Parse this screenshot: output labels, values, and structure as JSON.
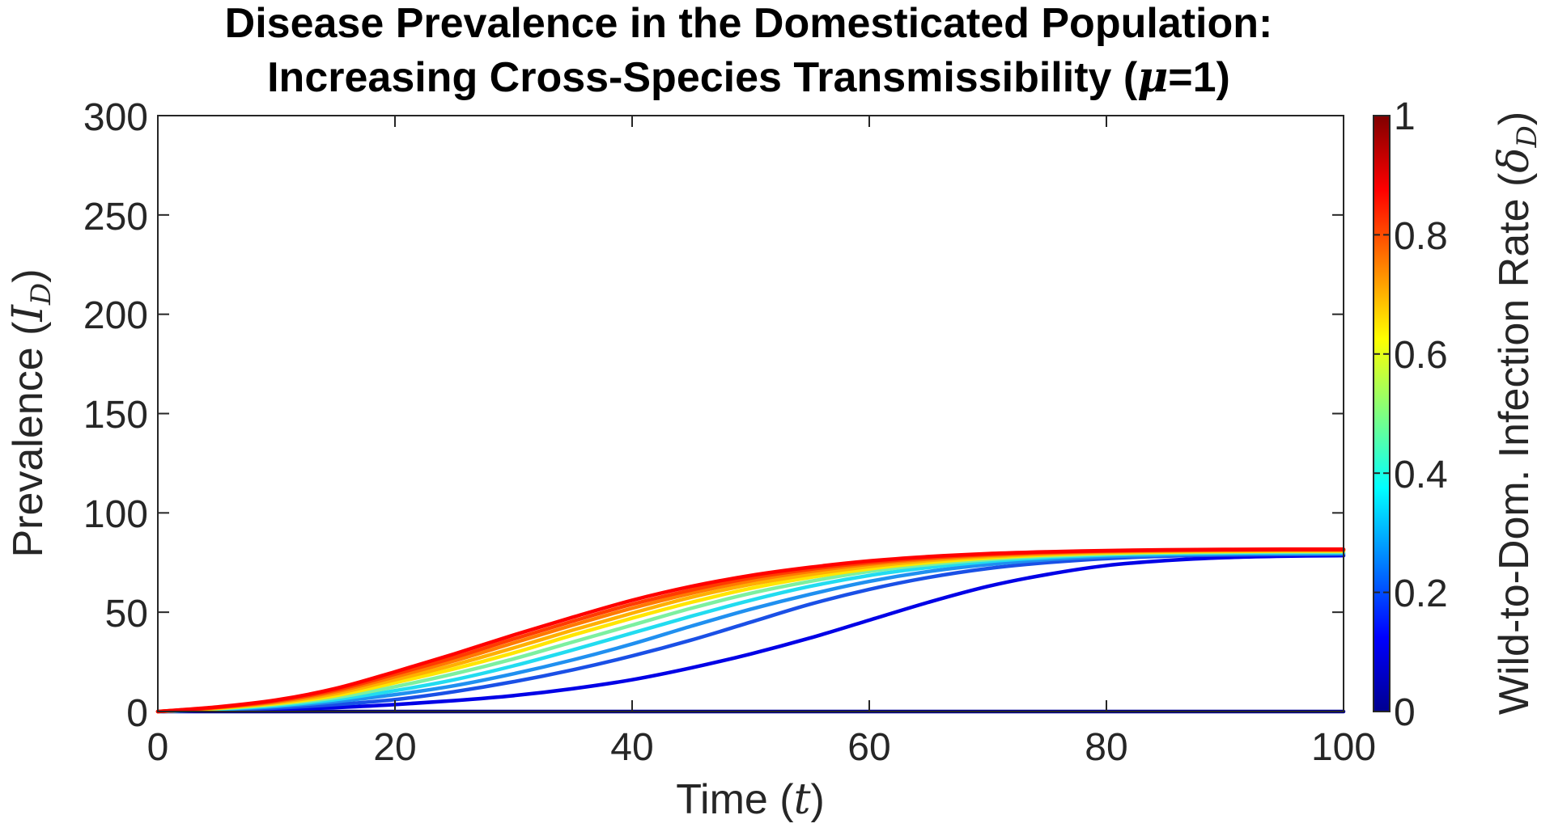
{
  "chart_data": {
    "type": "line",
    "title_line1": "Disease Prevalence in the Domesticated Population:",
    "title_line2_prefix": "Increasing Cross-Species Transmissibility (",
    "title_mu_symbol": "μ",
    "title_line2_suffix": "=1)",
    "xlabel_prefix": "Time (",
    "xlabel_var": "t",
    "xlabel_suffix": ")",
    "ylabel_prefix": "Prevalence (",
    "ylabel_var": "I",
    "ylabel_sub": "D",
    "ylabel_suffix": ")",
    "xlim": [
      0,
      100
    ],
    "ylim": [
      0,
      300
    ],
    "xticks": [
      "0",
      "20",
      "40",
      "60",
      "80",
      "100"
    ],
    "yticks": [
      "0",
      "50",
      "100",
      "150",
      "200",
      "250",
      "300"
    ],
    "colorbar": {
      "colormap": "jet",
      "range": [
        0,
        1
      ],
      "ticks": [
        "0",
        "0.2",
        "0.4",
        "0.6",
        "0.8",
        "1"
      ],
      "label_prefix": "Wild-to-Dom. Infection Rate (",
      "label_var": "δ",
      "label_sub": "D",
      "label_suffix": ")"
    },
    "x": [
      0,
      5,
      10,
      15,
      20,
      25,
      30,
      35,
      40,
      45,
      50,
      55,
      60,
      65,
      70,
      75,
      80,
      85,
      90,
      95,
      100
    ],
    "series": [
      {
        "name": "δD=0.0",
        "delta": 0.0,
        "color": "#00008f",
        "values": [
          0,
          0,
          0,
          0,
          0,
          0,
          0,
          0,
          0,
          0,
          0,
          0,
          0,
          0,
          0,
          0,
          0,
          0,
          0,
          0,
          0
        ]
      },
      {
        "name": "δD=0.1",
        "delta": 0.1,
        "color": "#0000e6",
        "values": [
          0,
          0.6,
          1.2,
          2,
          3.5,
          5.5,
          8,
          11.5,
          16,
          22,
          29,
          37,
          46,
          55,
          63,
          69,
          73.5,
          76,
          77.5,
          78.2,
          78.5
        ]
      },
      {
        "name": "δD=0.2",
        "delta": 0.2,
        "color": "#1a50e6",
        "values": [
          0,
          0.8,
          1.8,
          3.5,
          6,
          10,
          15,
          21,
          28,
          36,
          45,
          54,
          61.5,
          67.5,
          72,
          75,
          77,
          78.2,
          78.8,
          79,
          79.2
        ]
      },
      {
        "name": "δD=0.3",
        "delta": 0.3,
        "color": "#2090f0",
        "values": [
          0,
          1,
          2.5,
          5,
          8.5,
          13,
          19,
          26,
          34,
          43,
          51.5,
          59,
          65.5,
          70.5,
          74,
          76.5,
          78,
          78.8,
          79.3,
          79.5,
          79.6
        ]
      },
      {
        "name": "δD=0.4",
        "delta": 0.4,
        "color": "#22dcf0",
        "values": [
          0,
          1.2,
          3,
          6,
          10.5,
          16,
          23,
          31,
          39.5,
          48,
          56,
          63,
          68.5,
          72.5,
          75.5,
          77.5,
          78.8,
          79.5,
          79.8,
          80,
          80
        ]
      },
      {
        "name": "δD=0.5",
        "delta": 0.5,
        "color": "#7cf0a0",
        "values": [
          0,
          1.4,
          3.5,
          7,
          12.5,
          19,
          26.5,
          35,
          43.5,
          52,
          59.5,
          65.5,
          70.5,
          74,
          76.5,
          78.2,
          79.3,
          79.9,
          80.2,
          80.4,
          80.4
        ]
      },
      {
        "name": "δD=0.6",
        "delta": 0.6,
        "color": "#ffe600",
        "values": [
          0,
          1.6,
          4,
          8,
          14.5,
          21.5,
          29.5,
          38.5,
          47,
          55,
          62,
          67.5,
          71.8,
          75,
          77.3,
          78.8,
          79.8,
          80.3,
          80.6,
          80.8,
          80.8
        ]
      },
      {
        "name": "δD=0.7",
        "delta": 0.7,
        "color": "#ffb000",
        "values": [
          0,
          1.8,
          4.5,
          9,
          16,
          23.5,
          32,
          41,
          49.5,
          57.5,
          64,
          69,
          73,
          76,
          78,
          79.3,
          80.2,
          80.7,
          81,
          81.1,
          81.1
        ]
      },
      {
        "name": "δD=0.8",
        "delta": 0.8,
        "color": "#ff7a00",
        "values": [
          0,
          2,
          5,
          10,
          17.5,
          25.5,
          34.5,
          43.5,
          52,
          59.5,
          65.8,
          70.5,
          74.2,
          76.8,
          78.6,
          79.8,
          80.6,
          81,
          81.2,
          81.3,
          81.3
        ]
      },
      {
        "name": "δD=0.9",
        "delta": 0.9,
        "color": "#ff3c00",
        "values": [
          0,
          2.1,
          5.4,
          10.8,
          18.8,
          27.2,
          36.5,
          45.5,
          54,
          61.2,
          67.2,
          71.6,
          75,
          77.4,
          79,
          80.1,
          80.8,
          81.2,
          81.4,
          81.5,
          81.5
        ]
      },
      {
        "name": "δD=1.0",
        "delta": 1.0,
        "color": "#ff0000",
        "values": [
          0,
          2.3,
          5.8,
          11.6,
          20,
          29,
          38.5,
          47.5,
          56,
          63,
          68.5,
          72.6,
          75.8,
          78,
          79.5,
          80.4,
          81,
          81.4,
          81.6,
          81.7,
          81.7
        ]
      }
    ]
  }
}
